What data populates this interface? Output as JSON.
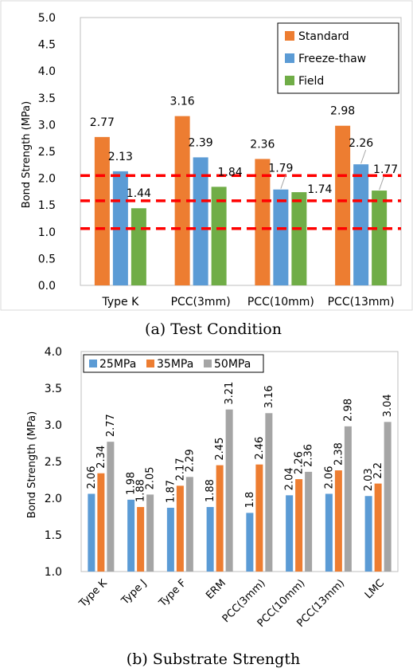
{
  "chart_data": [
    {
      "type": "bar",
      "caption": "(a) Test Condition",
      "ylabel": "Bond Strength (MPa)",
      "ylim": [
        0,
        5
      ],
      "ytick_step": 0.5,
      "grid": false,
      "legend_placement": "top-right",
      "categories": [
        "Type K",
        "PCC(3mm)",
        "PCC(10mm)",
        "PCC(13mm)"
      ],
      "series": [
        {
          "name": "Standard",
          "color": "#ED7D31",
          "values": [
            2.77,
            3.16,
            2.36,
            2.98
          ]
        },
        {
          "name": "Freeze-thaw",
          "color": "#5B9BD5",
          "values": [
            2.13,
            2.39,
            1.79,
            2.26
          ]
        },
        {
          "name": "Field",
          "color": "#70AD47",
          "values": [
            1.44,
            1.84,
            1.74,
            1.77
          ]
        }
      ],
      "value_labels": [
        [
          "2.77",
          "3.16",
          "2.36",
          "2.98"
        ],
        [
          "2.13",
          "2.39",
          "1.79",
          "2.26"
        ],
        [
          "1.44",
          "1.84",
          "1.74",
          "1.77"
        ]
      ],
      "reference_lines": [
        {
          "value": 2.05,
          "color": "#FF0000",
          "style": "dashed"
        },
        {
          "value": 1.58,
          "color": "#FF0000",
          "style": "dashed"
        },
        {
          "value": 1.06,
          "color": "#FF0000",
          "style": "dashed"
        }
      ]
    },
    {
      "type": "bar",
      "caption": "(b) Substrate Strength",
      "ylabel": "Bond Strength (MPa)",
      "ylim": [
        1.0,
        4.0
      ],
      "ytick_step": 0.5,
      "grid": false,
      "legend_placement": "top-left",
      "categories": [
        "Type K",
        "Type J",
        "Type F",
        "ERM",
        "PCC(3mm)",
        "PCC(10mm)",
        "PCC(13mm)",
        "LMC"
      ],
      "series": [
        {
          "name": "25MPa",
          "color": "#5B9BD5",
          "values": [
            2.06,
            1.98,
            1.87,
            1.88,
            1.8,
            2.04,
            2.06,
            2.03
          ]
        },
        {
          "name": "35MPa",
          "color": "#ED7D31",
          "values": [
            2.34,
            1.88,
            2.17,
            2.45,
            2.46,
            2.26,
            2.38,
            2.2
          ]
        },
        {
          "name": "50MPa",
          "color": "#A5A5A5",
          "values": [
            2.77,
            2.05,
            2.29,
            3.21,
            3.16,
            2.36,
            2.98,
            3.04
          ]
        }
      ],
      "value_labels": [
        [
          "2.06",
          "1.98",
          "1.87",
          "1.88",
          "1.8",
          "2.04",
          "2.06",
          "2.03"
        ],
        [
          "2.34",
          "1.88",
          "2.17",
          "2.45",
          "2.46",
          "2.26",
          "2.38",
          "2.2"
        ],
        [
          "2.77",
          "2.05",
          "2.29",
          "3.21",
          "3.16",
          "2.36",
          "2.98",
          "3.04"
        ]
      ]
    }
  ]
}
